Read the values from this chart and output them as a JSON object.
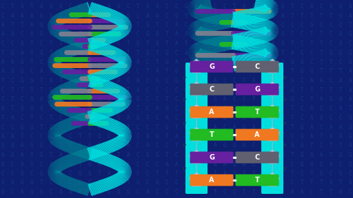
{
  "bg_color": "#0d1f6e",
  "cyan": "#00dede",
  "cyan_mid": "#00b5b5",
  "cyan_dark": "#008898",
  "orange": "#f07820",
  "green": "#22bb22",
  "purple": "#6620a0",
  "gray": "#707080",
  "pairs": [
    {
      "left": "A",
      "right": "T",
      "left_color": "#f07820",
      "right_color": "#22bb22"
    },
    {
      "left": "G",
      "right": "C",
      "left_color": "#6620a0",
      "right_color": "#606070"
    },
    {
      "left": "T",
      "right": "A",
      "left_color": "#22bb22",
      "right_color": "#f07820"
    },
    {
      "left": "A",
      "right": "T",
      "left_color": "#f07820",
      "right_color": "#22bb22"
    },
    {
      "left": "C",
      "right": "G",
      "left_color": "#606070",
      "right_color": "#6620a0"
    },
    {
      "left": "G",
      "right": "C",
      "left_color": "#6620a0",
      "right_color": "#606070"
    }
  ],
  "helix_colors": [
    "#f07820",
    "#22bb22",
    "#6620a0",
    "#808090"
  ],
  "figsize": [
    5.12,
    2.88
  ],
  "dpi": 100,
  "text_color": "#1a3a8a",
  "pent_face": "#c5dce8",
  "pent_edge": "#88bbd0"
}
